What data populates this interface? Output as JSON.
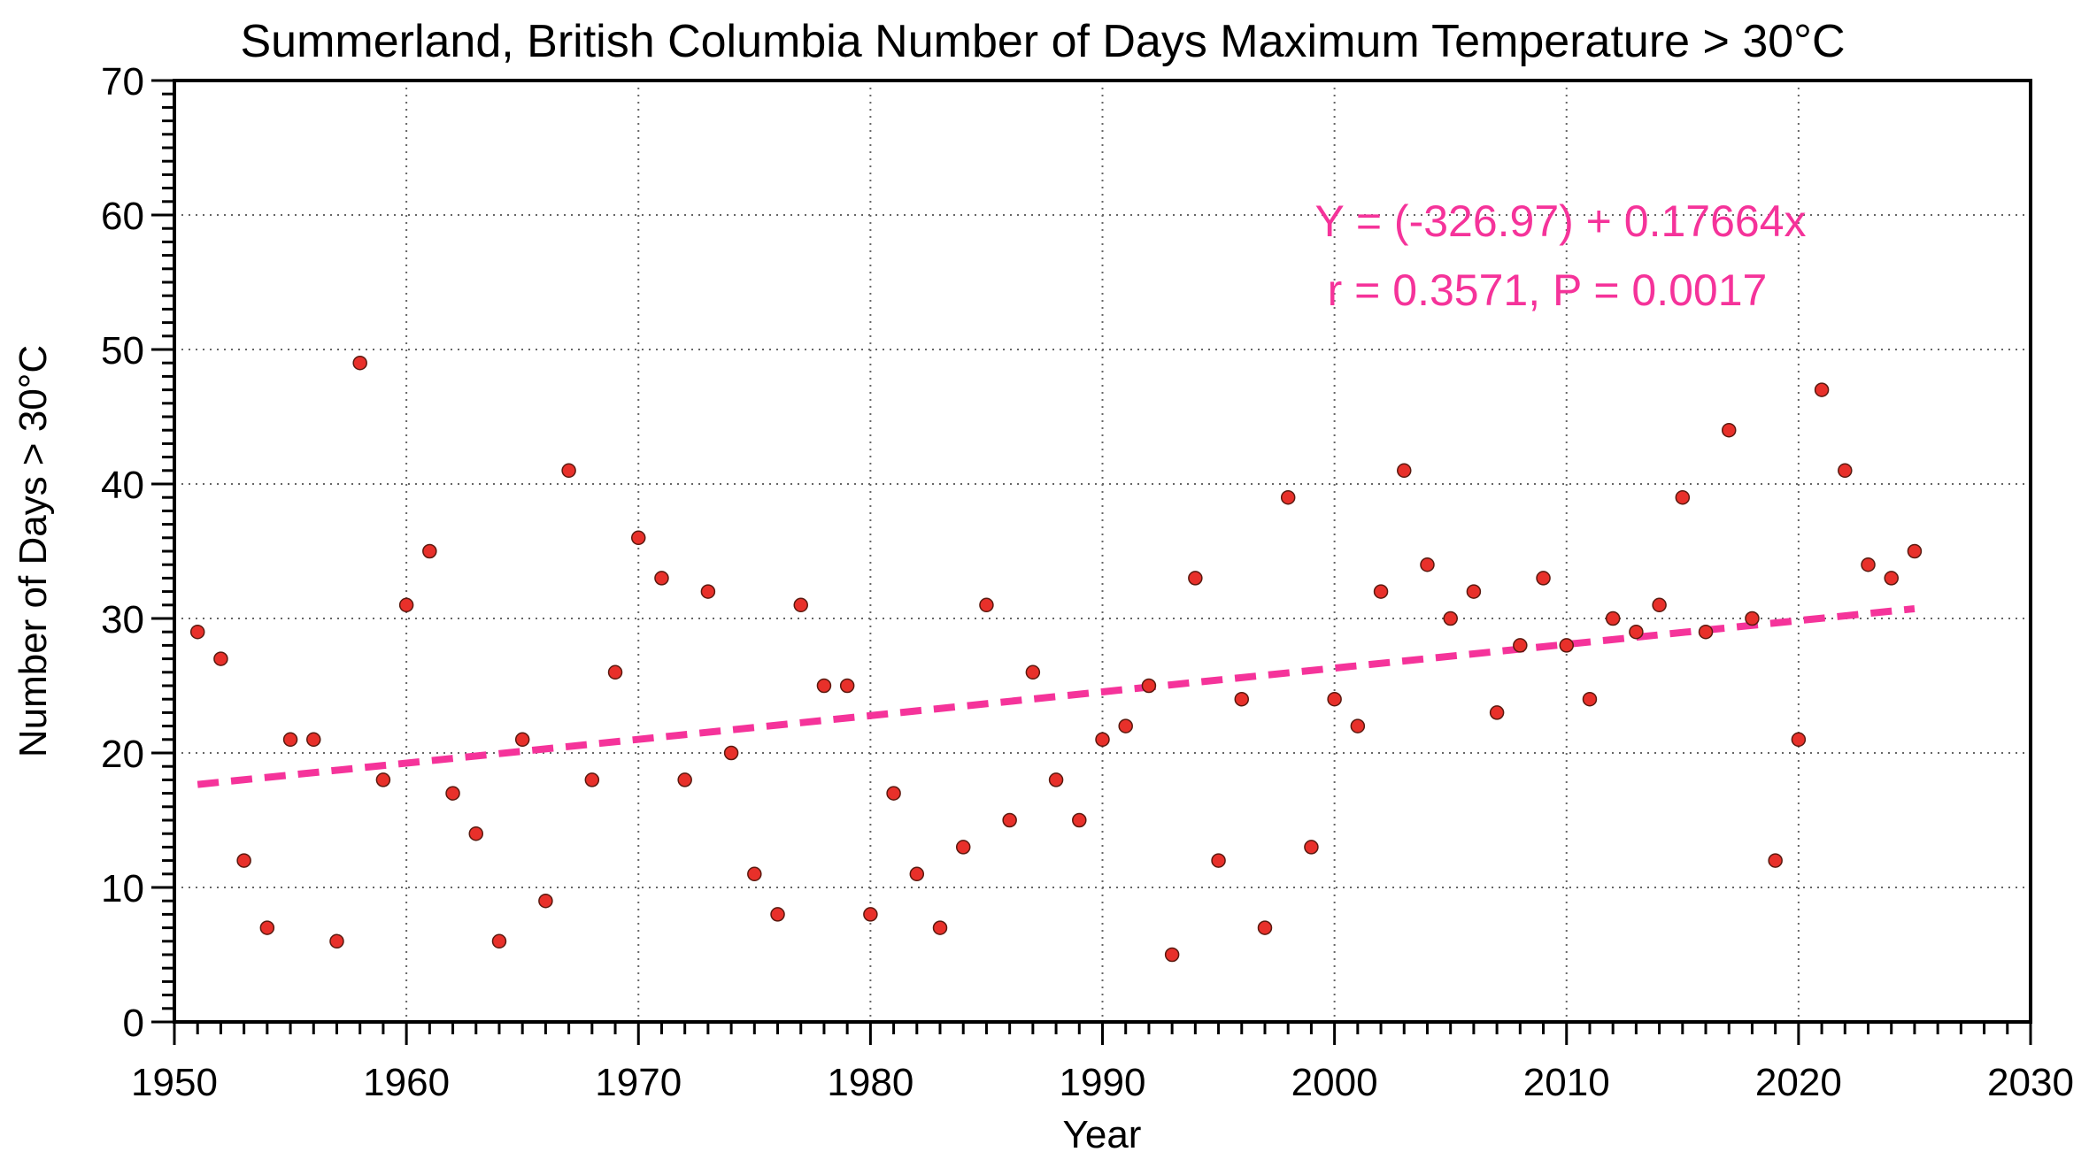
{
  "chart_data": {
    "type": "scatter",
    "title": "Summerland, British Columbia Number of Days Maximum Temperature  > 30°C",
    "xlabel": "Year",
    "ylabel": "Number of Days > 30°C",
    "xlim": [
      1950,
      2030
    ],
    "ylim": [
      0,
      70
    ],
    "x_ticks": [
      1950,
      1960,
      1970,
      1980,
      1990,
      2000,
      2010,
      2020,
      2030
    ],
    "y_ticks": [
      0,
      10,
      20,
      30,
      40,
      50,
      60,
      70
    ],
    "x_tick_labels": [
      "1950",
      "1960",
      "1970",
      "1980",
      "1990",
      "2000",
      "2010",
      "2020",
      "2030"
    ],
    "y_tick_labels": [
      "0",
      "10",
      "20",
      "30",
      "40",
      "50",
      "60",
      "70"
    ],
    "x_minor_step": 1,
    "y_minor_step": 1,
    "grid": true,
    "series": [
      {
        "name": "Days > 30°C",
        "color": "#e8302a",
        "x": [
          1951,
          1952,
          1953,
          1954,
          1955,
          1956,
          1957,
          1958,
          1959,
          1960,
          1961,
          1962,
          1963,
          1964,
          1965,
          1966,
          1967,
          1968,
          1969,
          1970,
          1971,
          1972,
          1973,
          1974,
          1975,
          1976,
          1977,
          1978,
          1979,
          1980,
          1981,
          1982,
          1983,
          1984,
          1985,
          1986,
          1987,
          1988,
          1989,
          1990,
          1991,
          1992,
          1993,
          1994,
          1995,
          1996,
          1997,
          1998,
          1999,
          2000,
          2001,
          2002,
          2003,
          2004,
          2005,
          2006,
          2007,
          2008,
          2009,
          2010,
          2011,
          2012,
          2013,
          2014,
          2015,
          2016,
          2017,
          2018,
          2019,
          2020,
          2021,
          2022,
          2023,
          2024,
          2025
        ],
        "y": [
          29,
          27,
          12,
          7,
          21,
          21,
          6,
          49,
          18,
          31,
          35,
          17,
          14,
          6,
          21,
          9,
          41,
          18,
          26,
          36,
          33,
          18,
          32,
          20,
          11,
          8,
          31,
          25,
          25,
          8,
          17,
          11,
          7,
          13,
          31,
          15,
          26,
          18,
          15,
          21,
          22,
          25,
          5,
          33,
          12,
          24,
          7,
          39,
          13,
          24,
          22,
          32,
          41,
          34,
          30,
          32,
          23,
          28,
          33,
          28,
          24,
          30,
          29,
          31,
          39,
          29,
          44,
          30,
          12,
          21,
          47,
          41,
          34,
          33,
          35
        ]
      }
    ],
    "trendline": {
      "color": "#f5339a",
      "style": "dashed",
      "intercept": -326.97,
      "slope": 0.17664,
      "x_range": [
        1951,
        2025
      ]
    },
    "annotations": [
      "Y = (-326.97) + 0.17664x",
      "r = 0.3571, P = 0.0017"
    ]
  }
}
